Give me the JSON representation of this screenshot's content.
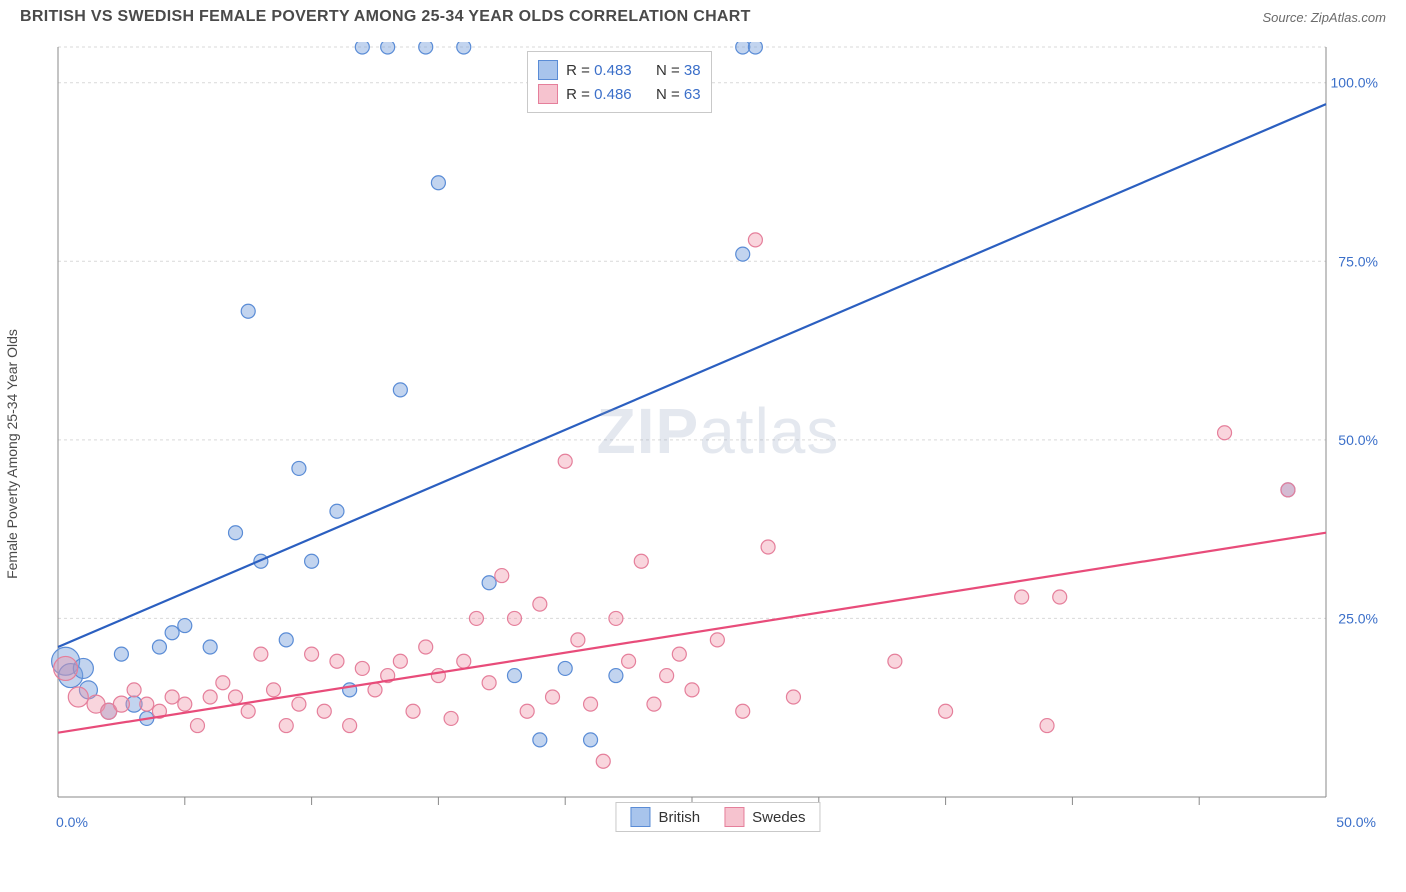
{
  "header": {
    "title": "BRITISH VS SWEDISH FEMALE POVERTY AMONG 25-34 YEAR OLDS CORRELATION CHART",
    "source_prefix": "Source: ",
    "source": "ZipAtlas.com"
  },
  "chart": {
    "type": "scatter",
    "y_axis_label": "Female Poverty Among 25-34 Year Olds",
    "watermark_zip": "ZIP",
    "watermark_atlas": "atlas",
    "background_color": "#ffffff",
    "grid_color": "#d9d9d9",
    "axis_color": "#888888",
    "xlim": [
      0,
      50
    ],
    "ylim": [
      0,
      105
    ],
    "x_ticks": [
      5,
      10,
      15,
      20,
      25,
      30,
      35,
      40,
      45
    ],
    "x_tick_labels_edges": {
      "left": "0.0%",
      "right": "50.0%"
    },
    "y_ticks": [
      25,
      50,
      75,
      100
    ],
    "y_tick_labels": [
      "25.0%",
      "50.0%",
      "75.0%",
      "100.0%"
    ],
    "series": [
      {
        "name": "British",
        "color_fill": "rgba(120,160,220,0.45)",
        "color_stroke": "#5a8cd6",
        "swatch_fill": "#a8c4ec",
        "swatch_border": "#5a8cd6",
        "trend_color": "#2b5fc0",
        "trend_width": 2.2,
        "trend": {
          "x1": 0,
          "y1": 21,
          "x2": 50,
          "y2": 97
        },
        "r_value": "0.483",
        "n_value": "38",
        "points": [
          {
            "x": 0.3,
            "y": 19,
            "r": 14
          },
          {
            "x": 0.5,
            "y": 17,
            "r": 12
          },
          {
            "x": 1.0,
            "y": 18,
            "r": 10
          },
          {
            "x": 1.2,
            "y": 15,
            "r": 9
          },
          {
            "x": 2.0,
            "y": 12,
            "r": 8
          },
          {
            "x": 2.5,
            "y": 20,
            "r": 7
          },
          {
            "x": 3.0,
            "y": 13,
            "r": 8
          },
          {
            "x": 3.5,
            "y": 11,
            "r": 7
          },
          {
            "x": 4.0,
            "y": 21,
            "r": 7
          },
          {
            "x": 4.5,
            "y": 23,
            "r": 7
          },
          {
            "x": 5.0,
            "y": 24,
            "r": 7
          },
          {
            "x": 6.0,
            "y": 21,
            "r": 7
          },
          {
            "x": 7.0,
            "y": 37,
            "r": 7
          },
          {
            "x": 7.5,
            "y": 68,
            "r": 7
          },
          {
            "x": 8.0,
            "y": 33,
            "r": 7
          },
          {
            "x": 9.0,
            "y": 22,
            "r": 7
          },
          {
            "x": 9.5,
            "y": 46,
            "r": 7
          },
          {
            "x": 10.0,
            "y": 33,
            "r": 7
          },
          {
            "x": 11.0,
            "y": 40,
            "r": 7
          },
          {
            "x": 11.5,
            "y": 15,
            "r": 7
          },
          {
            "x": 12.0,
            "y": 105,
            "r": 7
          },
          {
            "x": 13.0,
            "y": 105,
            "r": 7
          },
          {
            "x": 13.5,
            "y": 57,
            "r": 7
          },
          {
            "x": 14.5,
            "y": 105,
            "r": 7
          },
          {
            "x": 15.0,
            "y": 86,
            "r": 7
          },
          {
            "x": 16.0,
            "y": 105,
            "r": 7
          },
          {
            "x": 17.0,
            "y": 30,
            "r": 7
          },
          {
            "x": 18.0,
            "y": 17,
            "r": 7
          },
          {
            "x": 19.0,
            "y": 8,
            "r": 7
          },
          {
            "x": 20.0,
            "y": 18,
            "r": 7
          },
          {
            "x": 21.0,
            "y": 8,
            "r": 7
          },
          {
            "x": 22.0,
            "y": 17,
            "r": 7
          },
          {
            "x": 27.0,
            "y": 105,
            "r": 7
          },
          {
            "x": 27.5,
            "y": 105,
            "r": 7
          },
          {
            "x": 27.0,
            "y": 76,
            "r": 7
          },
          {
            "x": 48.5,
            "y": 43,
            "r": 7
          }
        ]
      },
      {
        "name": "Swedes",
        "color_fill": "rgba(240,150,170,0.40)",
        "color_stroke": "#e57f9b",
        "swatch_fill": "#f6c3cf",
        "swatch_border": "#e57f9b",
        "trend_color": "#e84c7a",
        "trend_width": 2.2,
        "trend": {
          "x1": 0,
          "y1": 9,
          "x2": 50,
          "y2": 37
        },
        "r_value": "0.486",
        "n_value": "63",
        "points": [
          {
            "x": 0.3,
            "y": 18,
            "r": 12
          },
          {
            "x": 0.8,
            "y": 14,
            "r": 10
          },
          {
            "x": 1.5,
            "y": 13,
            "r": 9
          },
          {
            "x": 2.0,
            "y": 12,
            "r": 8
          },
          {
            "x": 2.5,
            "y": 13,
            "r": 8
          },
          {
            "x": 3.0,
            "y": 15,
            "r": 7
          },
          {
            "x": 3.5,
            "y": 13,
            "r": 7
          },
          {
            "x": 4.0,
            "y": 12,
            "r": 7
          },
          {
            "x": 4.5,
            "y": 14,
            "r": 7
          },
          {
            "x": 5.0,
            "y": 13,
            "r": 7
          },
          {
            "x": 5.5,
            "y": 10,
            "r": 7
          },
          {
            "x": 6.0,
            "y": 14,
            "r": 7
          },
          {
            "x": 6.5,
            "y": 16,
            "r": 7
          },
          {
            "x": 7.0,
            "y": 14,
            "r": 7
          },
          {
            "x": 7.5,
            "y": 12,
            "r": 7
          },
          {
            "x": 8.0,
            "y": 20,
            "r": 7
          },
          {
            "x": 8.5,
            "y": 15,
            "r": 7
          },
          {
            "x": 9.0,
            "y": 10,
            "r": 7
          },
          {
            "x": 9.5,
            "y": 13,
            "r": 7
          },
          {
            "x": 10.0,
            "y": 20,
            "r": 7
          },
          {
            "x": 10.5,
            "y": 12,
            "r": 7
          },
          {
            "x": 11.0,
            "y": 19,
            "r": 7
          },
          {
            "x": 11.5,
            "y": 10,
            "r": 7
          },
          {
            "x": 12.0,
            "y": 18,
            "r": 7
          },
          {
            "x": 12.5,
            "y": 15,
            "r": 7
          },
          {
            "x": 13.0,
            "y": 17,
            "r": 7
          },
          {
            "x": 13.5,
            "y": 19,
            "r": 7
          },
          {
            "x": 14.0,
            "y": 12,
            "r": 7
          },
          {
            "x": 14.5,
            "y": 21,
            "r": 7
          },
          {
            "x": 15.0,
            "y": 17,
            "r": 7
          },
          {
            "x": 15.5,
            "y": 11,
            "r": 7
          },
          {
            "x": 16.0,
            "y": 19,
            "r": 7
          },
          {
            "x": 16.5,
            "y": 25,
            "r": 7
          },
          {
            "x": 17.0,
            "y": 16,
            "r": 7
          },
          {
            "x": 17.5,
            "y": 31,
            "r": 7
          },
          {
            "x": 18.0,
            "y": 25,
            "r": 7
          },
          {
            "x": 18.5,
            "y": 12,
            "r": 7
          },
          {
            "x": 19.0,
            "y": 27,
            "r": 7
          },
          {
            "x": 19.5,
            "y": 14,
            "r": 7
          },
          {
            "x": 20.0,
            "y": 47,
            "r": 7
          },
          {
            "x": 20.5,
            "y": 22,
            "r": 7
          },
          {
            "x": 21.0,
            "y": 13,
            "r": 7
          },
          {
            "x": 21.5,
            "y": 5,
            "r": 7
          },
          {
            "x": 22.0,
            "y": 25,
            "r": 7
          },
          {
            "x": 22.5,
            "y": 19,
            "r": 7
          },
          {
            "x": 23.0,
            "y": 33,
            "r": 7
          },
          {
            "x": 23.5,
            "y": 13,
            "r": 7
          },
          {
            "x": 24.0,
            "y": 17,
            "r": 7
          },
          {
            "x": 24.5,
            "y": 20,
            "r": 7
          },
          {
            "x": 25.0,
            "y": 15,
            "r": 7
          },
          {
            "x": 26.0,
            "y": 22,
            "r": 7
          },
          {
            "x": 27.0,
            "y": 12,
            "r": 7
          },
          {
            "x": 27.5,
            "y": 78,
            "r": 7
          },
          {
            "x": 28.0,
            "y": 35,
            "r": 7
          },
          {
            "x": 29.0,
            "y": 14,
            "r": 7
          },
          {
            "x": 33.0,
            "y": 19,
            "r": 7
          },
          {
            "x": 35.0,
            "y": 12,
            "r": 7
          },
          {
            "x": 38.0,
            "y": 28,
            "r": 7
          },
          {
            "x": 39.5,
            "y": 28,
            "r": 7
          },
          {
            "x": 39.0,
            "y": 10,
            "r": 7
          },
          {
            "x": 46.0,
            "y": 51,
            "r": 7
          },
          {
            "x": 48.5,
            "y": 43,
            "r": 7
          }
        ]
      }
    ],
    "legend_bottom": [
      {
        "label": "British",
        "fill": "#a8c4ec",
        "border": "#5a8cd6"
      },
      {
        "label": "Swedes",
        "fill": "#f6c3cf",
        "border": "#e57f9b"
      }
    ],
    "corr_box": {
      "r_prefix": "R = ",
      "n_prefix": "N = "
    }
  }
}
